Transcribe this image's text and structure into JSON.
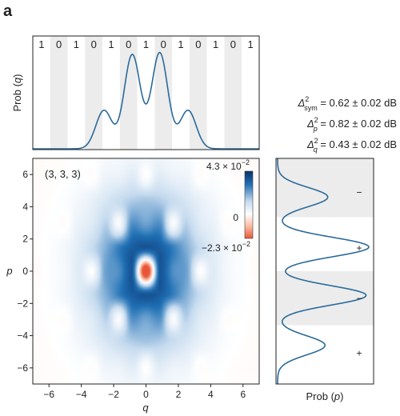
{
  "panel_label": "a",
  "state_label": "(3, 3, 3)",
  "colorbar": {
    "max_label": "4.3 × 10",
    "max_exp": "−2",
    "zero_label": "0",
    "min_label": "−2.3 × 10",
    "min_exp": "−2",
    "high_color": "#08306b",
    "mid_color": "#ffffff",
    "low_color": "#e8563a"
  },
  "stats": [
    {
      "sym": "Δ",
      "sup": "2",
      "sub": "sym",
      "text": " = 0.62 ± 0.02 dB"
    },
    {
      "sym": "Δ",
      "sup": "2",
      "sub": "p",
      "text": " = 0.82 ± 0.02 dB"
    },
    {
      "sym": "Δ",
      "sup": "2",
      "sub": "q",
      "text": " = 0.43 ± 0.02 dB"
    }
  ],
  "top_bits": [
    "1",
    "0",
    "1",
    "0",
    "1",
    "0",
    "1",
    "0",
    "1",
    "0",
    "1",
    "0",
    "1"
  ],
  "right_signs": [
    "−",
    "+",
    "−",
    "+"
  ],
  "chart_data": [
    {
      "type": "line",
      "ylabel_text": "Prob (",
      "ylabel_var": "q",
      "ylabel_close": ")",
      "xlim": [
        -7,
        7
      ],
      "line_color": "#2a6a9a",
      "peaks": [
        {
          "x": -2.6,
          "height": 0.4
        },
        {
          "x": -0.85,
          "height": 0.98
        },
        {
          "x": 0.85,
          "height": 1.0
        },
        {
          "x": 2.6,
          "height": 0.4
        }
      ]
    },
    {
      "type": "heatmap",
      "xlabel": "q",
      "ylabel": "p",
      "xlim": [
        -7,
        7
      ],
      "ylim": [
        -7,
        7
      ],
      "xticks": [
        -6,
        -4,
        -2,
        0,
        2,
        4,
        6
      ],
      "yticks": [
        -6,
        -4,
        -2,
        0,
        2,
        4,
        6
      ],
      "xtick_labels": [
        "−6",
        "−4",
        "−2",
        "0",
        "2",
        "4",
        "6"
      ],
      "ytick_labels": [
        "−6",
        "−4",
        "−2",
        "0",
        "2",
        "4",
        "6"
      ],
      "vmin": -0.023,
      "vmax": 0.043
    },
    {
      "type": "line",
      "xlabel_text": "Prob (",
      "xlabel_var": "p",
      "xlabel_close": ")",
      "ylim": [
        -7,
        7
      ],
      "line_color": "#2a6a9a",
      "peaks": [
        {
          "p": 4.6,
          "height": 0.55
        },
        {
          "p": 1.5,
          "height": 1.0
        },
        {
          "p": -1.5,
          "height": 0.97
        },
        {
          "p": -4.6,
          "height": 0.52
        }
      ]
    }
  ]
}
